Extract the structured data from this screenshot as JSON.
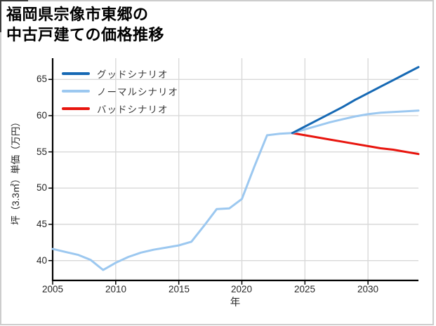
{
  "title": {
    "line1": "福岡県宗像市東郷の",
    "line2": "中古戸建ての価格推移"
  },
  "legend": {
    "items": [
      {
        "label": "グッドシナリオ",
        "color": "#1669b4"
      },
      {
        "label": "ノーマルシナリオ",
        "color": "#9cc8f0"
      },
      {
        "label": "バッドシナリオ",
        "color": "#e8150e"
      }
    ]
  },
  "chart_data": {
    "type": "line",
    "title": "福岡県宗像市東郷の中古戸建ての価格推移",
    "xlabel": "年",
    "ylabel": "坪（3.3㎡）単価（万円）",
    "xlim": [
      2005,
      2034
    ],
    "ylim": [
      37.26,
      67.93
    ],
    "x_ticks": [
      2005,
      2010,
      2015,
      2020,
      2025,
      2030
    ],
    "y_ticks": [
      40,
      45,
      50,
      55,
      60,
      65
    ],
    "grid": true,
    "legend_position": "upper left",
    "series": [
      {
        "id": "historical",
        "legend": null,
        "color": "#9cc8f0",
        "x": [
          2005,
          2006,
          2007,
          2008,
          2009,
          2010,
          2011,
          2012,
          2013,
          2014,
          2015,
          2016,
          2017,
          2018,
          2019,
          2020,
          2021,
          2022,
          2023,
          2024
        ],
        "values": [
          41.6,
          41.2,
          40.8,
          40.1,
          38.7,
          39.7,
          40.5,
          41.1,
          41.5,
          41.8,
          42.1,
          42.6,
          44.8,
          47.1,
          47.2,
          48.5,
          53.0,
          57.3,
          57.5,
          57.6
        ]
      },
      {
        "id": "bad-scenario",
        "legend": "バッドシナリオ",
        "color": "#e8150e",
        "x": [
          2024,
          2025,
          2026,
          2027,
          2028,
          2029,
          2030,
          2031,
          2032,
          2033,
          2034
        ],
        "values": [
          57.6,
          57.3,
          57.0,
          56.7,
          56.4,
          56.1,
          55.8,
          55.5,
          55.3,
          55.0,
          54.7
        ]
      },
      {
        "id": "normal-scenario",
        "legend": "ノーマルシナリオ",
        "color": "#9cc8f0",
        "x": [
          2024,
          2025,
          2026,
          2027,
          2028,
          2029,
          2030,
          2031,
          2032,
          2033,
          2034
        ],
        "values": [
          57.6,
          58.1,
          58.6,
          59.1,
          59.5,
          59.9,
          60.2,
          60.4,
          60.5,
          60.6,
          60.7
        ]
      },
      {
        "id": "good-scenario",
        "legend": "グッドシナリオ",
        "color": "#1669b4",
        "x": [
          2024,
          2025,
          2026,
          2027,
          2028,
          2029,
          2030,
          2031,
          2032,
          2033,
          2034
        ],
        "values": [
          57.6,
          58.5,
          59.4,
          60.3,
          61.2,
          62.2,
          63.1,
          64.0,
          64.9,
          65.8,
          66.7
        ]
      }
    ]
  },
  "colors": {
    "grid": "#d9d9d9",
    "spine": "#000000",
    "tick_label": "#262626",
    "legend_text": "#3a3a3a",
    "frame": "#cdcdcd"
  }
}
